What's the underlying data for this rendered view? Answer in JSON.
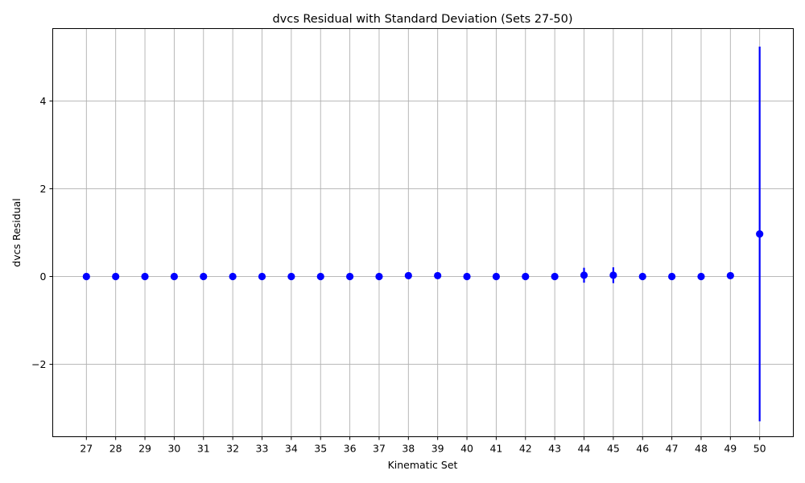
{
  "chart_data": {
    "type": "scatter",
    "title": "dvcs Residual with Standard Deviation (Sets 27-50)",
    "xlabel": "Kinematic Set",
    "ylabel": "dvcs Residual",
    "xlim": [
      25.85,
      51.15
    ],
    "ylim": [
      -3.65,
      5.65
    ],
    "x_ticks": [
      27,
      28,
      29,
      30,
      31,
      32,
      33,
      34,
      35,
      36,
      37,
      38,
      39,
      40,
      41,
      42,
      43,
      44,
      45,
      46,
      47,
      48,
      49,
      50
    ],
    "y_ticks": [
      -2,
      0,
      2,
      4
    ],
    "y_tick_labels": [
      "−2",
      "0",
      "2",
      "4"
    ],
    "grid": true,
    "marker_color": "#0000ff",
    "series": [
      {
        "x": [
          27,
          28,
          29,
          30,
          31,
          32,
          33,
          34,
          35,
          36,
          37,
          38,
          39,
          40,
          41,
          42,
          43,
          44,
          45,
          46,
          47,
          48,
          49,
          50
        ],
        "y": [
          0.0,
          0.0,
          0.0,
          0.0,
          0.0,
          0.0,
          0.0,
          0.0,
          0.0,
          0.0,
          0.0,
          0.02,
          0.02,
          0.0,
          0.0,
          0.0,
          0.0,
          0.03,
          0.03,
          0.0,
          0.0,
          0.0,
          0.02,
          0.97
        ],
        "yerr": [
          0.02,
          0.02,
          0.02,
          0.08,
          0.02,
          0.02,
          0.02,
          0.02,
          0.02,
          0.02,
          0.02,
          0.04,
          0.04,
          0.02,
          0.02,
          0.02,
          0.02,
          0.17,
          0.18,
          0.02,
          0.02,
          0.02,
          0.04,
          4.27
        ]
      }
    ]
  }
}
